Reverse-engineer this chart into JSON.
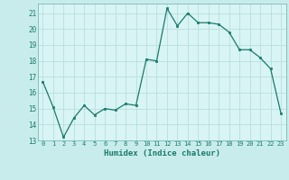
{
  "x": [
    0,
    1,
    2,
    3,
    4,
    5,
    6,
    7,
    8,
    9,
    10,
    11,
    12,
    13,
    14,
    15,
    16,
    17,
    18,
    19,
    20,
    21,
    22,
    23
  ],
  "y": [
    16.7,
    15.1,
    13.2,
    14.4,
    15.2,
    14.6,
    15.0,
    14.9,
    15.3,
    15.2,
    18.1,
    18.0,
    21.3,
    20.2,
    21.0,
    20.4,
    20.4,
    20.3,
    19.8,
    18.7,
    18.7,
    18.2,
    17.5,
    14.7
  ],
  "line_color": "#1a7a6a",
  "marker_color": "#1a7a6a",
  "bg_color": "#c8ecec",
  "grid_color": "#b8dede",
  "xlabel": "Humidex (Indice chaleur)",
  "xlim": [
    -0.5,
    23.5
  ],
  "ylim": [
    13,
    21.6
  ],
  "yticks": [
    13,
    14,
    15,
    16,
    17,
    18,
    19,
    20,
    21
  ],
  "xticks": [
    0,
    1,
    2,
    3,
    4,
    5,
    6,
    7,
    8,
    9,
    10,
    11,
    12,
    13,
    14,
    15,
    16,
    17,
    18,
    19,
    20,
    21,
    22,
    23
  ],
  "tick_color": "#1a7a6a",
  "label_color": "#1a7a6a",
  "spine_color": "#7ab8b8",
  "axis_bg": "#d8f4f4"
}
